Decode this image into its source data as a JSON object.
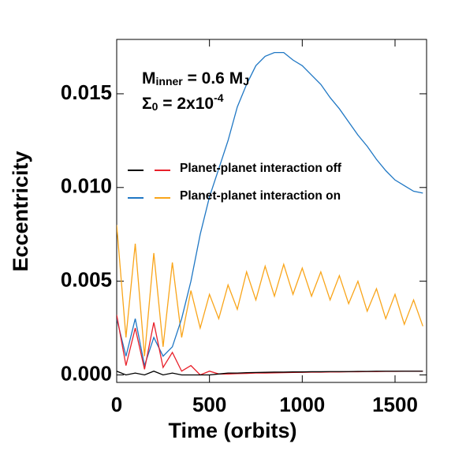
{
  "chart_data": {
    "type": "line",
    "x_label": "Time (orbits)",
    "y_label": "Eccentricity",
    "annotations": [
      {
        "parts": [
          {
            "text": "M"
          },
          {
            "text": "inner",
            "shift": "sub"
          },
          {
            "text": " = 0.6 M"
          },
          {
            "text": "J",
            "shift": "sub"
          }
        ]
      },
      {
        "parts": [
          {
            "text": "Σ"
          },
          {
            "text": "0",
            "shift": "sub"
          },
          {
            "text": " = 2x10"
          },
          {
            "text": "-4",
            "shift": "super"
          }
        ]
      }
    ],
    "legend": [
      {
        "label": "Planet-planet interaction off",
        "colors": [
          "#000000",
          "#e8202a"
        ]
      },
      {
        "label": "Planet-planet interaction on",
        "colors": [
          "#1f77c4",
          "#f9a51a"
        ]
      }
    ],
    "xlim": [
      0,
      1670
    ],
    "ylim": [
      -0.0004,
      0.0179
    ],
    "xticks": [
      0,
      500,
      1000,
      1500
    ],
    "yticks": [
      {
        "value": 0,
        "label": "0.000"
      },
      {
        "value": 0.005,
        "label": "0.005"
      },
      {
        "value": 0.01,
        "label": "0.010"
      },
      {
        "value": 0.015,
        "label": "0.015"
      }
    ],
    "x": [
      0,
      50,
      100,
      150,
      200,
      250,
      300,
      350,
      400,
      450,
      500,
      550,
      600,
      650,
      700,
      750,
      800,
      850,
      900,
      950,
      1000,
      1050,
      1100,
      1150,
      1200,
      1250,
      1300,
      1350,
      1400,
      1450,
      1500,
      1550,
      1600,
      1650
    ],
    "series": [
      {
        "color": "#f9a51a",
        "values": [
          0.008,
          0.002,
          0.007,
          0.001,
          0.0065,
          0.0015,
          0.006,
          0.002,
          0.0045,
          0.0025,
          0.0043,
          0.003,
          0.0048,
          0.0035,
          0.0055,
          0.004,
          0.0058,
          0.0042,
          0.0059,
          0.0043,
          0.0057,
          0.0042,
          0.0055,
          0.004,
          0.0053,
          0.0038,
          0.005,
          0.0034,
          0.0046,
          0.003,
          0.0043,
          0.0027,
          0.004,
          0.0026
        ]
      },
      {
        "color": "#1f77c4",
        "values": [
          0.003,
          0.001,
          0.003,
          0.0005,
          0.002,
          0.001,
          0.0015,
          0.003,
          0.005,
          0.0075,
          0.0095,
          0.011,
          0.0125,
          0.0143,
          0.0155,
          0.0165,
          0.017,
          0.0172,
          0.0172,
          0.0168,
          0.0165,
          0.016,
          0.0155,
          0.0148,
          0.0142,
          0.0135,
          0.0128,
          0.0122,
          0.0115,
          0.0109,
          0.0104,
          0.0101,
          0.0098,
          0.0097
        ]
      },
      {
        "color": "#e8202a",
        "values": [
          0.0032,
          0.0005,
          0.0025,
          0.0003,
          0.0028,
          0.0004,
          0.0012,
          0.0002,
          0.0005,
          0,
          0.0002,
          5e-05,
          5e-05,
          7e-05,
          8e-05,
          0.0001,
          0.0001,
          0.00011,
          0.00012,
          0.00013,
          0.00014,
          0.00015,
          0.00015,
          0.00016,
          0.00016,
          0.00017,
          0.00017,
          0.00018,
          0.00018,
          0.00019,
          0.00019,
          0.0002,
          0.0002,
          0.0002
        ]
      },
      {
        "color": "#000000",
        "values": [
          0.0002,
          0,
          0.0001,
          0,
          0.0002,
          0,
          0.0001,
          0,
          0,
          0,
          0,
          5e-05,
          0.0001,
          0.0001,
          0.00012,
          0.00013,
          0.00014,
          0.00015,
          0.00015,
          0.00016,
          0.00016,
          0.00017,
          0.00017,
          0.00018,
          0.00018,
          0.00018,
          0.00019,
          0.00019,
          0.0002,
          0.0002,
          0.0002,
          0.0002,
          0.0002,
          0.0002
        ]
      }
    ]
  }
}
